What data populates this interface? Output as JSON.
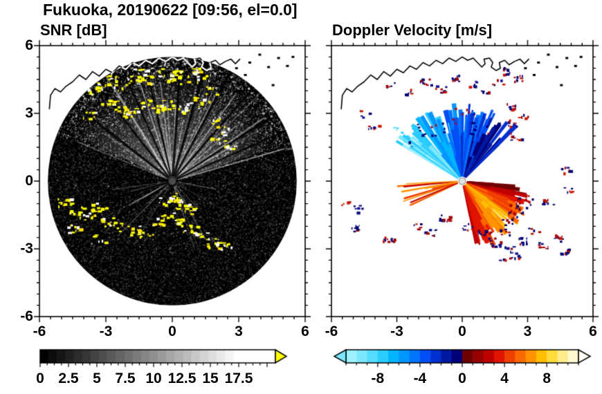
{
  "title": "Fukuoka, 20190622 [09:56, el=0.0]",
  "panels": {
    "left": {
      "title": "SNR [dB]",
      "x_tick_values": [
        -6,
        -3,
        0,
        3,
        6
      ],
      "x_tick_labels": [
        "-6",
        "-3",
        "0",
        "3",
        "6"
      ],
      "y_tick_values": [
        6,
        3,
        0,
        -3,
        -6
      ],
      "y_tick_labels": [
        "6",
        "3",
        "0",
        "-3",
        "-6"
      ],
      "colorbar": {
        "tick_values": [
          0,
          2.5,
          5,
          7.5,
          10,
          12.5,
          15,
          17.5
        ],
        "tick_labels": [
          "0",
          "2.5",
          "5",
          "7.5",
          "10",
          "12.5",
          "15",
          "17.5"
        ],
        "range": [
          0,
          20.7
        ],
        "min_color": "#000000",
        "max_color": "#ffffff",
        "over_arrow_color": "#ffff00"
      }
    },
    "right": {
      "title": "Doppler Velocity [m/s]",
      "x_tick_values": [
        -6,
        -3,
        0,
        3,
        6
      ],
      "x_tick_labels": [
        "-6",
        "-3",
        "0",
        "3",
        "6"
      ],
      "colorbar": {
        "tick_values": [
          -8,
          -4,
          0,
          4,
          8
        ],
        "tick_labels": [
          "-8",
          "-4",
          "0",
          "4",
          "8"
        ],
        "range": [
          -11,
          11
        ],
        "under_arrow_color": "#7ce8ff",
        "over_arrow_color": "#fffdf0",
        "segment_colors": [
          "#9ef2ff",
          "#7ce8ff",
          "#55dcff",
          "#2bccff",
          "#00b4ff",
          "#0096ff",
          "#0074ff",
          "#004ef5",
          "#0030d2",
          "#0018a0",
          "#000078",
          "#6e0000",
          "#960000",
          "#be0000",
          "#e01400",
          "#f04000",
          "#fa6800",
          "#ff9400",
          "#ffbe00",
          "#ffdc3c",
          "#ffec8c",
          "#fffad2"
        ]
      }
    }
  },
  "map_overlay": {
    "coastline": [
      [
        -5.55,
        3.2
      ],
      [
        -5.5,
        3.8
      ],
      [
        -5.3,
        4.1
      ],
      [
        -5.05,
        3.95
      ],
      [
        -4.8,
        4.2
      ],
      [
        -4.5,
        4.4
      ],
      [
        -4.2,
        4.7
      ],
      [
        -3.9,
        4.5
      ],
      [
        -3.6,
        4.85
      ],
      [
        -3.3,
        4.65
      ],
      [
        -3.0,
        4.95
      ],
      [
        -2.7,
        4.8
      ],
      [
        -2.4,
        5.1
      ],
      [
        -2.1,
        4.95
      ],
      [
        -1.8,
        5.25
      ],
      [
        -1.5,
        5.1
      ],
      [
        -1.2,
        5.35
      ],
      [
        -0.9,
        5.2
      ],
      [
        -0.6,
        5.45
      ],
      [
        -0.3,
        5.3
      ],
      [
        0.0,
        5.5
      ],
      [
        0.25,
        5.35
      ],
      [
        0.5,
        5.45
      ],
      [
        0.7,
        5.25
      ],
      [
        0.9,
        5.05
      ],
      [
        1.05,
        5.2
      ],
      [
        1.0,
        5.4
      ],
      [
        1.25,
        5.45
      ],
      [
        1.4,
        5.25
      ],
      [
        1.33,
        5.05
      ],
      [
        1.55,
        4.9
      ],
      [
        1.75,
        5.0
      ],
      [
        1.7,
        5.25
      ],
      [
        1.95,
        5.35
      ],
      [
        2.15,
        5.15
      ],
      [
        2.4,
        5.3
      ],
      [
        2.65,
        5.4
      ],
      [
        2.85,
        5.2
      ],
      [
        3.05,
        5.4
      ]
    ],
    "islands": [
      [
        3.5,
        5.25
      ],
      [
        3.95,
        5.6
      ],
      [
        4.35,
        5.05
      ],
      [
        4.8,
        5.45
      ],
      [
        5.2,
        5.1
      ],
      [
        3.3,
        4.7
      ],
      [
        4.55,
        4.25
      ],
      [
        5.45,
        5.5
      ],
      [
        2.9,
        5.0
      ]
    ]
  },
  "chart_data": [
    {
      "type": "heatmap",
      "title": "SNR [dB]",
      "xlabel": "",
      "ylabel": "",
      "xlim": [
        -6,
        6
      ],
      "ylim": [
        -6,
        6
      ],
      "x_ticks": [
        -6,
        -3,
        0,
        3,
        6
      ],
      "y_ticks": [
        -6,
        -3,
        0,
        3,
        6
      ],
      "colorbar": {
        "min": 0,
        "max": 17.5,
        "ticks": [
          0,
          2.5,
          5,
          7.5,
          10,
          12.5,
          15,
          17.5
        ],
        "colormap": "black-to-white grayscale",
        "over_color": "#ffff00"
      },
      "features": {
        "disk_radius": 5.62,
        "bright_fan": {
          "angle_start": -65,
          "angle_end": 72
        },
        "dark_spokes": [
          -52,
          -38,
          -24,
          -13,
          4,
          16,
          28,
          41,
          57,
          66,
          236,
          254
        ],
        "clutter_clusters": [
          [
            -3.5,
            4.0
          ],
          [
            -3.1,
            4.35
          ],
          [
            -2.7,
            4.6
          ],
          [
            -2.3,
            4.15
          ],
          [
            -1.9,
            4.5
          ],
          [
            -1.5,
            4.8
          ],
          [
            -1.1,
            4.45
          ],
          [
            -0.7,
            4.85
          ],
          [
            -0.3,
            4.55
          ],
          [
            0.1,
            4.75
          ],
          [
            0.5,
            4.5
          ],
          [
            0.9,
            4.85
          ],
          [
            1.35,
            4.55
          ],
          [
            -2.9,
            3.5
          ],
          [
            -2.4,
            3.25
          ],
          [
            -1.9,
            3.05
          ],
          [
            -1.35,
            3.45
          ],
          [
            -0.8,
            3.2
          ],
          [
            -0.25,
            3.4
          ],
          [
            0.3,
            3.15
          ],
          [
            0.85,
            3.35
          ],
          [
            1.3,
            3.65
          ],
          [
            1.7,
            4.05
          ],
          [
            -3.8,
            3.0
          ],
          [
            1.9,
            2.7
          ],
          [
            2.2,
            2.25
          ],
          [
            2.05,
            1.75
          ],
          [
            2.45,
            1.45
          ],
          [
            -4.85,
            -0.95
          ],
          [
            -4.35,
            -1.25
          ],
          [
            -3.85,
            -1.5
          ],
          [
            -3.35,
            -1.15
          ],
          [
            -2.9,
            -1.8
          ],
          [
            -2.35,
            -2.0
          ],
          [
            -1.8,
            -2.15
          ],
          [
            -1.25,
            -2.3
          ],
          [
            -0.7,
            -1.75
          ],
          [
            -0.2,
            -1.55
          ],
          [
            0.3,
            -1.85
          ],
          [
            0.8,
            -2.1
          ],
          [
            1.3,
            -2.45
          ],
          [
            1.8,
            -2.7
          ],
          [
            2.3,
            -2.85
          ],
          [
            0.9,
            -1.3
          ],
          [
            -4.5,
            -2.1
          ],
          [
            -3.4,
            -2.55
          ],
          [
            0.1,
            -0.7
          ],
          [
            -0.35,
            -0.85
          ],
          [
            0.45,
            -1.0
          ]
        ]
      }
    },
    {
      "type": "heatmap",
      "title": "Doppler Velocity [m/s]",
      "xlabel": "",
      "ylabel": "",
      "xlim": [
        -6,
        6
      ],
      "ylim": [
        -6,
        6
      ],
      "x_ticks": [
        -6,
        -3,
        0,
        3,
        6
      ],
      "colorbar": {
        "min": -11,
        "max": 11,
        "ticks": [
          -8,
          -4,
          0,
          4,
          8
        ],
        "colormap": "cyan-blue (toward, negative) to dark red-orange-yellow (away, positive)"
      },
      "features": {
        "toward_fan": {
          "angle_start": -60,
          "angle_end": 45,
          "max_range": 3.6
        },
        "away_fan": {
          "angle_start": 96,
          "angle_end": 170,
          "max_range": 3.3
        },
        "west_streaks": {
          "angle_start": 242,
          "angle_end": 268,
          "max_range": 3.4
        },
        "cyan_patches": [
          [
            -2.6,
            1.9
          ],
          [
            -2.2,
            1.6
          ],
          [
            -2.95,
            2.3
          ]
        ],
        "speckle_clusters": [
          [
            -4.5,
            3.0
          ],
          [
            -4.1,
            2.4
          ],
          [
            -3.3,
            4.25
          ],
          [
            -2.5,
            4.0
          ],
          [
            -1.7,
            4.4
          ],
          [
            -1.0,
            4.1
          ],
          [
            -0.3,
            4.6
          ],
          [
            0.4,
            4.3
          ],
          [
            1.0,
            4.05
          ],
          [
            1.6,
            4.4
          ],
          [
            2.1,
            4.9
          ],
          [
            2.6,
            4.55
          ],
          [
            2.15,
            3.3
          ],
          [
            2.3,
            2.6
          ],
          [
            2.45,
            1.9
          ],
          [
            2.8,
            2.9
          ],
          [
            4.75,
            0.5
          ],
          [
            4.9,
            -0.35
          ],
          [
            3.9,
            -0.9
          ],
          [
            -5.3,
            -0.9
          ],
          [
            -4.75,
            -1.2
          ],
          [
            -5.0,
            -2.05
          ],
          [
            -3.4,
            -2.6
          ],
          [
            -2.1,
            -2.0
          ],
          [
            -1.5,
            -2.25
          ],
          [
            -0.85,
            -1.6
          ],
          [
            0.2,
            -2.0
          ],
          [
            0.85,
            -2.3
          ],
          [
            1.5,
            -2.75
          ],
          [
            2.1,
            -2.95
          ],
          [
            2.7,
            -2.6
          ],
          [
            3.25,
            -2.2
          ],
          [
            3.7,
            -2.85
          ],
          [
            4.3,
            -2.5
          ],
          [
            4.7,
            -3.1
          ],
          [
            1.9,
            -3.35
          ],
          [
            2.4,
            -3.3
          ]
        ]
      }
    }
  ]
}
